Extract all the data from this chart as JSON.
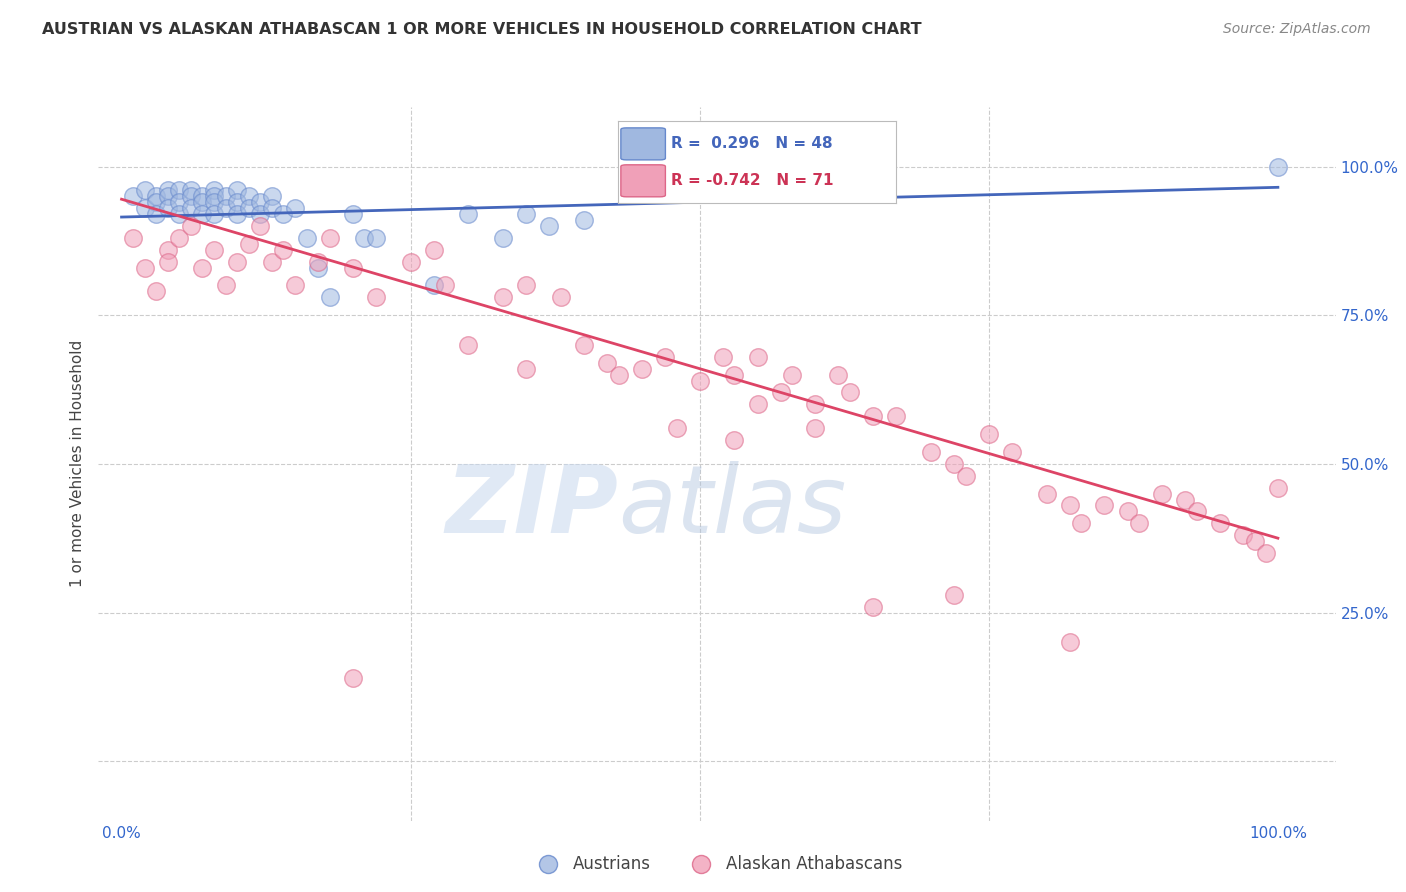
{
  "title": "AUSTRIAN VS ALASKAN ATHABASCAN 1 OR MORE VEHICLES IN HOUSEHOLD CORRELATION CHART",
  "source": "Source: ZipAtlas.com",
  "ylabel": "1 or more Vehicles in Household",
  "ytick_values": [
    0.0,
    0.25,
    0.5,
    0.75,
    1.0
  ],
  "ytick_labels": [
    "",
    "25.0%",
    "50.0%",
    "75.0%",
    "100.0%"
  ],
  "xtick_values": [
    0.0,
    0.25,
    0.5,
    0.75,
    1.0
  ],
  "xtick_labels": [
    "0.0%",
    "",
    "",
    "",
    "100.0%"
  ],
  "xlim": [
    -0.02,
    1.05
  ],
  "ylim": [
    -0.1,
    1.1
  ],
  "legend_entries": [
    "Austrians",
    "Alaskan Athabascans"
  ],
  "blue_color": "#a0b8e0",
  "pink_color": "#f0a0b8",
  "blue_edge_color": "#6688cc",
  "pink_edge_color": "#dd6688",
  "blue_line_color": "#4466bb",
  "pink_line_color": "#dd4466",
  "watermark_zip": "ZIP",
  "watermark_atlas": "atlas",
  "background_color": "#ffffff",
  "grid_color": "#cccccc",
  "blue_trendline_x": [
    0.0,
    1.0
  ],
  "blue_trendline_y": [
    0.915,
    0.965
  ],
  "pink_trendline_x": [
    0.0,
    1.0
  ],
  "pink_trendline_y": [
    0.945,
    0.375
  ],
  "legend_blue_text": "R =  0.296   N = 48",
  "legend_pink_text": "R = -0.742   N = 71",
  "legend_blue_color": "#4466bb",
  "legend_pink_color": "#cc3355",
  "austrians_x": [
    0.01,
    0.02,
    0.02,
    0.03,
    0.03,
    0.03,
    0.04,
    0.04,
    0.04,
    0.05,
    0.05,
    0.05,
    0.06,
    0.06,
    0.06,
    0.07,
    0.07,
    0.07,
    0.08,
    0.08,
    0.08,
    0.08,
    0.09,
    0.09,
    0.1,
    0.1,
    0.1,
    0.11,
    0.11,
    0.12,
    0.12,
    0.13,
    0.13,
    0.14,
    0.15,
    0.16,
    0.17,
    0.18,
    0.2,
    0.21,
    0.22,
    0.27,
    0.3,
    0.33,
    0.35,
    0.37,
    0.4,
    1.0
  ],
  "austrians_y": [
    0.95,
    0.96,
    0.93,
    0.95,
    0.94,
    0.92,
    0.96,
    0.95,
    0.93,
    0.96,
    0.94,
    0.92,
    0.96,
    0.95,
    0.93,
    0.95,
    0.94,
    0.92,
    0.96,
    0.95,
    0.94,
    0.92,
    0.95,
    0.93,
    0.96,
    0.94,
    0.92,
    0.95,
    0.93,
    0.94,
    0.92,
    0.95,
    0.93,
    0.92,
    0.93,
    0.88,
    0.83,
    0.78,
    0.92,
    0.88,
    0.88,
    0.8,
    0.92,
    0.88,
    0.92,
    0.9,
    0.91,
    1.0
  ],
  "athabascan_x": [
    0.01,
    0.02,
    0.03,
    0.04,
    0.04,
    0.05,
    0.06,
    0.07,
    0.08,
    0.09,
    0.1,
    0.11,
    0.12,
    0.13,
    0.14,
    0.15,
    0.17,
    0.18,
    0.2,
    0.22,
    0.25,
    0.27,
    0.28,
    0.3,
    0.33,
    0.35,
    0.38,
    0.4,
    0.42,
    0.43,
    0.45,
    0.47,
    0.5,
    0.52,
    0.53,
    0.55,
    0.57,
    0.58,
    0.6,
    0.62,
    0.63,
    0.65,
    0.67,
    0.7,
    0.72,
    0.73,
    0.75,
    0.77,
    0.8,
    0.82,
    0.83,
    0.85,
    0.87,
    0.88,
    0.9,
    0.92,
    0.93,
    0.95,
    0.97,
    0.98,
    0.99,
    1.0,
    0.2,
    0.35,
    0.48,
    0.53,
    0.55,
    0.6,
    0.65,
    0.72,
    0.82
  ],
  "athabascan_y": [
    0.88,
    0.83,
    0.79,
    0.86,
    0.84,
    0.88,
    0.9,
    0.83,
    0.86,
    0.8,
    0.84,
    0.87,
    0.9,
    0.84,
    0.86,
    0.8,
    0.84,
    0.88,
    0.83,
    0.78,
    0.84,
    0.86,
    0.8,
    0.7,
    0.78,
    0.8,
    0.78,
    0.7,
    0.67,
    0.65,
    0.66,
    0.68,
    0.64,
    0.68,
    0.65,
    0.68,
    0.62,
    0.65,
    0.6,
    0.65,
    0.62,
    0.58,
    0.58,
    0.52,
    0.5,
    0.48,
    0.55,
    0.52,
    0.45,
    0.43,
    0.4,
    0.43,
    0.42,
    0.4,
    0.45,
    0.44,
    0.42,
    0.4,
    0.38,
    0.37,
    0.35,
    0.46,
    0.14,
    0.66,
    0.56,
    0.54,
    0.6,
    0.56,
    0.26,
    0.28,
    0.2
  ]
}
